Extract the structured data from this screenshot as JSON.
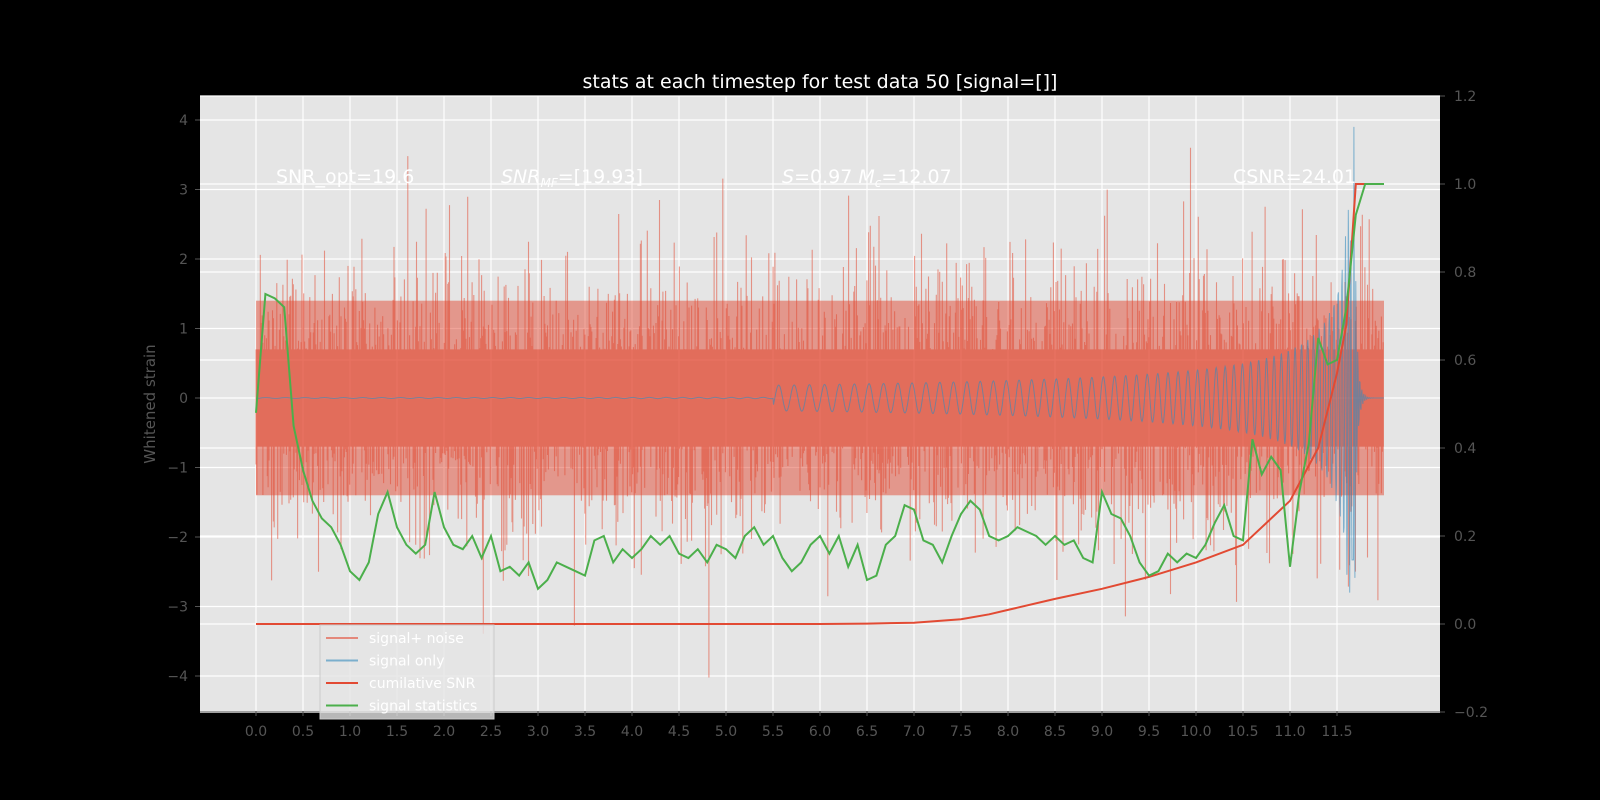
{
  "chart_data": {
    "type": "line",
    "title": "stats at each timestep for test data 50 [signal=[]]",
    "ylabel": "Whitened strain",
    "xlabel": "",
    "xlim": [
      -0.6,
      12.55
    ],
    "ylim": [
      -4.5,
      4.3
    ],
    "ylim_right": [
      -0.2,
      1.2
    ],
    "xticks": [
      "0.0",
      "0.5",
      "1.0",
      "1.5",
      "2.0",
      "2.5",
      "3.0",
      "3.5",
      "4.0",
      "4.5",
      "5.0",
      "5.5",
      "6.0",
      "6.5",
      "7.0",
      "7.5",
      "8.0",
      "8.5",
      "9.0",
      "9.5",
      "10.0",
      "10.5",
      "11.0",
      "11.5"
    ],
    "yticks_left": [
      "−4",
      "−3",
      "−2",
      "−1",
      "0",
      "1",
      "2",
      "3",
      "4"
    ],
    "yticks_right": [
      "−0.2",
      "0.0",
      "0.2",
      "0.4",
      "0.6",
      "0.8",
      "1.0",
      "1.2"
    ],
    "grid": true,
    "legend_position": "lower-left",
    "annotations": {
      "snr_opt": "SNR_opt=19.6",
      "snr_mf": "SNR_MF=[19.93]",
      "s_mc": "S=0.97   M_c=12.07",
      "csnr": "CSNR=24.01"
    },
    "series": [
      {
        "name": "signal+ noise",
        "color": "#E24A33",
        "axis": "left",
        "description": "noise band roughly within ±2.5 with spikes to ±4"
      },
      {
        "name": "signal only",
        "color": "#348ABD",
        "axis": "left",
        "description": "chirp growing from 0 near t=6 to peak ~3.9 at t≈11.67"
      },
      {
        "name": "cumilative SNR",
        "color": "#E24A33",
        "axis": "right",
        "x": [
          0.0,
          1.0,
          2.0,
          3.0,
          4.0,
          5.0,
          6.0,
          6.5,
          7.0,
          7.5,
          7.8,
          8.0,
          8.5,
          9.0,
          9.5,
          10.0,
          10.5,
          11.0,
          11.3,
          11.5,
          11.6,
          11.7,
          12.0
        ],
        "values": [
          0.0,
          0.0,
          0.0,
          0.0,
          0.0,
          0.0,
          0.0,
          0.001,
          0.003,
          0.011,
          0.022,
          0.032,
          0.057,
          0.08,
          0.107,
          0.14,
          0.18,
          0.28,
          0.4,
          0.57,
          0.68,
          1.0,
          1.0
        ]
      },
      {
        "name": "signal statistics",
        "color": "#4BAF4B",
        "axis": "right",
        "x": [
          0.0,
          0.1,
          0.2,
          0.3,
          0.4,
          0.5,
          0.6,
          0.7,
          0.8,
          0.9,
          1.0,
          1.1,
          1.2,
          1.3,
          1.4,
          1.5,
          1.6,
          1.7,
          1.8,
          1.9,
          2.0,
          2.1,
          2.2,
          2.3,
          2.4,
          2.5,
          2.6,
          2.7,
          2.8,
          2.9,
          3.0,
          3.1,
          3.2,
          3.3,
          3.4,
          3.5,
          3.6,
          3.7,
          3.8,
          3.9,
          4.0,
          4.1,
          4.2,
          4.3,
          4.4,
          4.5,
          4.6,
          4.7,
          4.8,
          4.9,
          5.0,
          5.1,
          5.2,
          5.3,
          5.4,
          5.5,
          5.6,
          5.7,
          5.8,
          5.9,
          6.0,
          6.1,
          6.2,
          6.3,
          6.4,
          6.5,
          6.6,
          6.7,
          6.8,
          6.9,
          7.0,
          7.1,
          7.2,
          7.3,
          7.4,
          7.5,
          7.6,
          7.7,
          7.8,
          7.9,
          8.0,
          8.1,
          8.2,
          8.3,
          8.4,
          8.5,
          8.6,
          8.7,
          8.8,
          8.9,
          9.0,
          9.1,
          9.2,
          9.3,
          9.4,
          9.5,
          9.6,
          9.7,
          9.8,
          9.9,
          10.0,
          10.1,
          10.2,
          10.3,
          10.4,
          10.5,
          10.6,
          10.7,
          10.8,
          10.9,
          11.0,
          11.1,
          11.2,
          11.3,
          11.4,
          11.5,
          11.6,
          11.7,
          11.8,
          12.0
        ],
        "values": [
          0.48,
          0.75,
          0.74,
          0.72,
          0.45,
          0.35,
          0.28,
          0.24,
          0.22,
          0.18,
          0.12,
          0.1,
          0.14,
          0.25,
          0.3,
          0.22,
          0.18,
          0.16,
          0.18,
          0.3,
          0.22,
          0.18,
          0.17,
          0.2,
          0.15,
          0.2,
          0.12,
          0.13,
          0.11,
          0.14,
          0.08,
          0.1,
          0.14,
          0.13,
          0.12,
          0.11,
          0.19,
          0.2,
          0.14,
          0.17,
          0.15,
          0.17,
          0.2,
          0.18,
          0.2,
          0.16,
          0.15,
          0.17,
          0.14,
          0.18,
          0.17,
          0.15,
          0.2,
          0.22,
          0.18,
          0.2,
          0.15,
          0.12,
          0.14,
          0.18,
          0.2,
          0.16,
          0.2,
          0.13,
          0.18,
          0.1,
          0.11,
          0.18,
          0.2,
          0.27,
          0.26,
          0.19,
          0.18,
          0.14,
          0.2,
          0.25,
          0.28,
          0.26,
          0.2,
          0.19,
          0.2,
          0.22,
          0.21,
          0.2,
          0.18,
          0.2,
          0.18,
          0.19,
          0.15,
          0.14,
          0.3,
          0.25,
          0.24,
          0.2,
          0.14,
          0.11,
          0.12,
          0.16,
          0.14,
          0.16,
          0.15,
          0.18,
          0.23,
          0.27,
          0.2,
          0.19,
          0.42,
          0.34,
          0.38,
          0.35,
          0.13,
          0.3,
          0.41,
          0.65,
          0.59,
          0.6,
          0.72,
          0.93,
          1.0,
          1.0
        ]
      }
    ]
  }
}
